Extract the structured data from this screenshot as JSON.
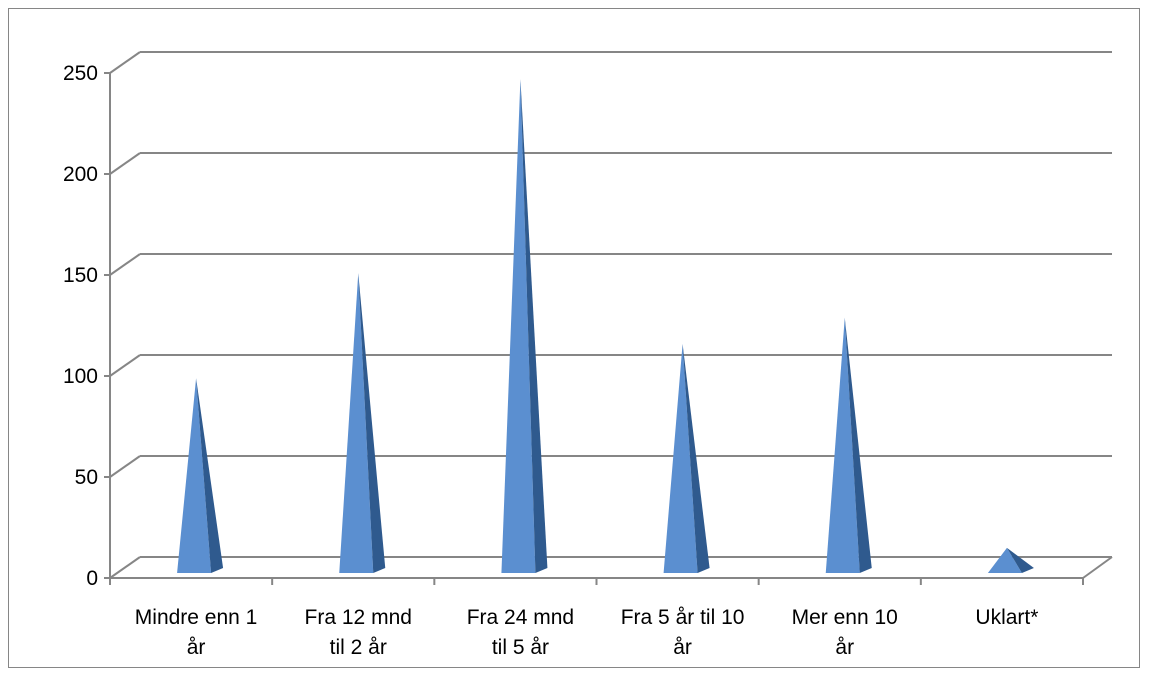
{
  "chart_data": {
    "type": "bar",
    "bar_shape": "3d-cone",
    "categories": [
      [
        "Mindre enn 1",
        "år"
      ],
      [
        "Fra 12 mnd",
        "til 2 år"
      ],
      [
        "Fra 24 mnd",
        "til 5 år"
      ],
      [
        "Fra 5 år til 10",
        "år"
      ],
      [
        "Mer enn 10",
        "år"
      ],
      [
        "Uklart*"
      ]
    ],
    "series": [
      {
        "values": [
          90,
          142,
          238,
          107,
          120,
          6
        ]
      }
    ],
    "yticks": [
      "0",
      "50",
      "100",
      "150",
      "200",
      "250"
    ],
    "ylim": [
      0,
      250
    ],
    "grid": true,
    "legend": "none",
    "colors": {
      "cone_light": "#5b8fd0",
      "cone_dark": "#2f5a8e",
      "gridline": "#868686"
    }
  }
}
